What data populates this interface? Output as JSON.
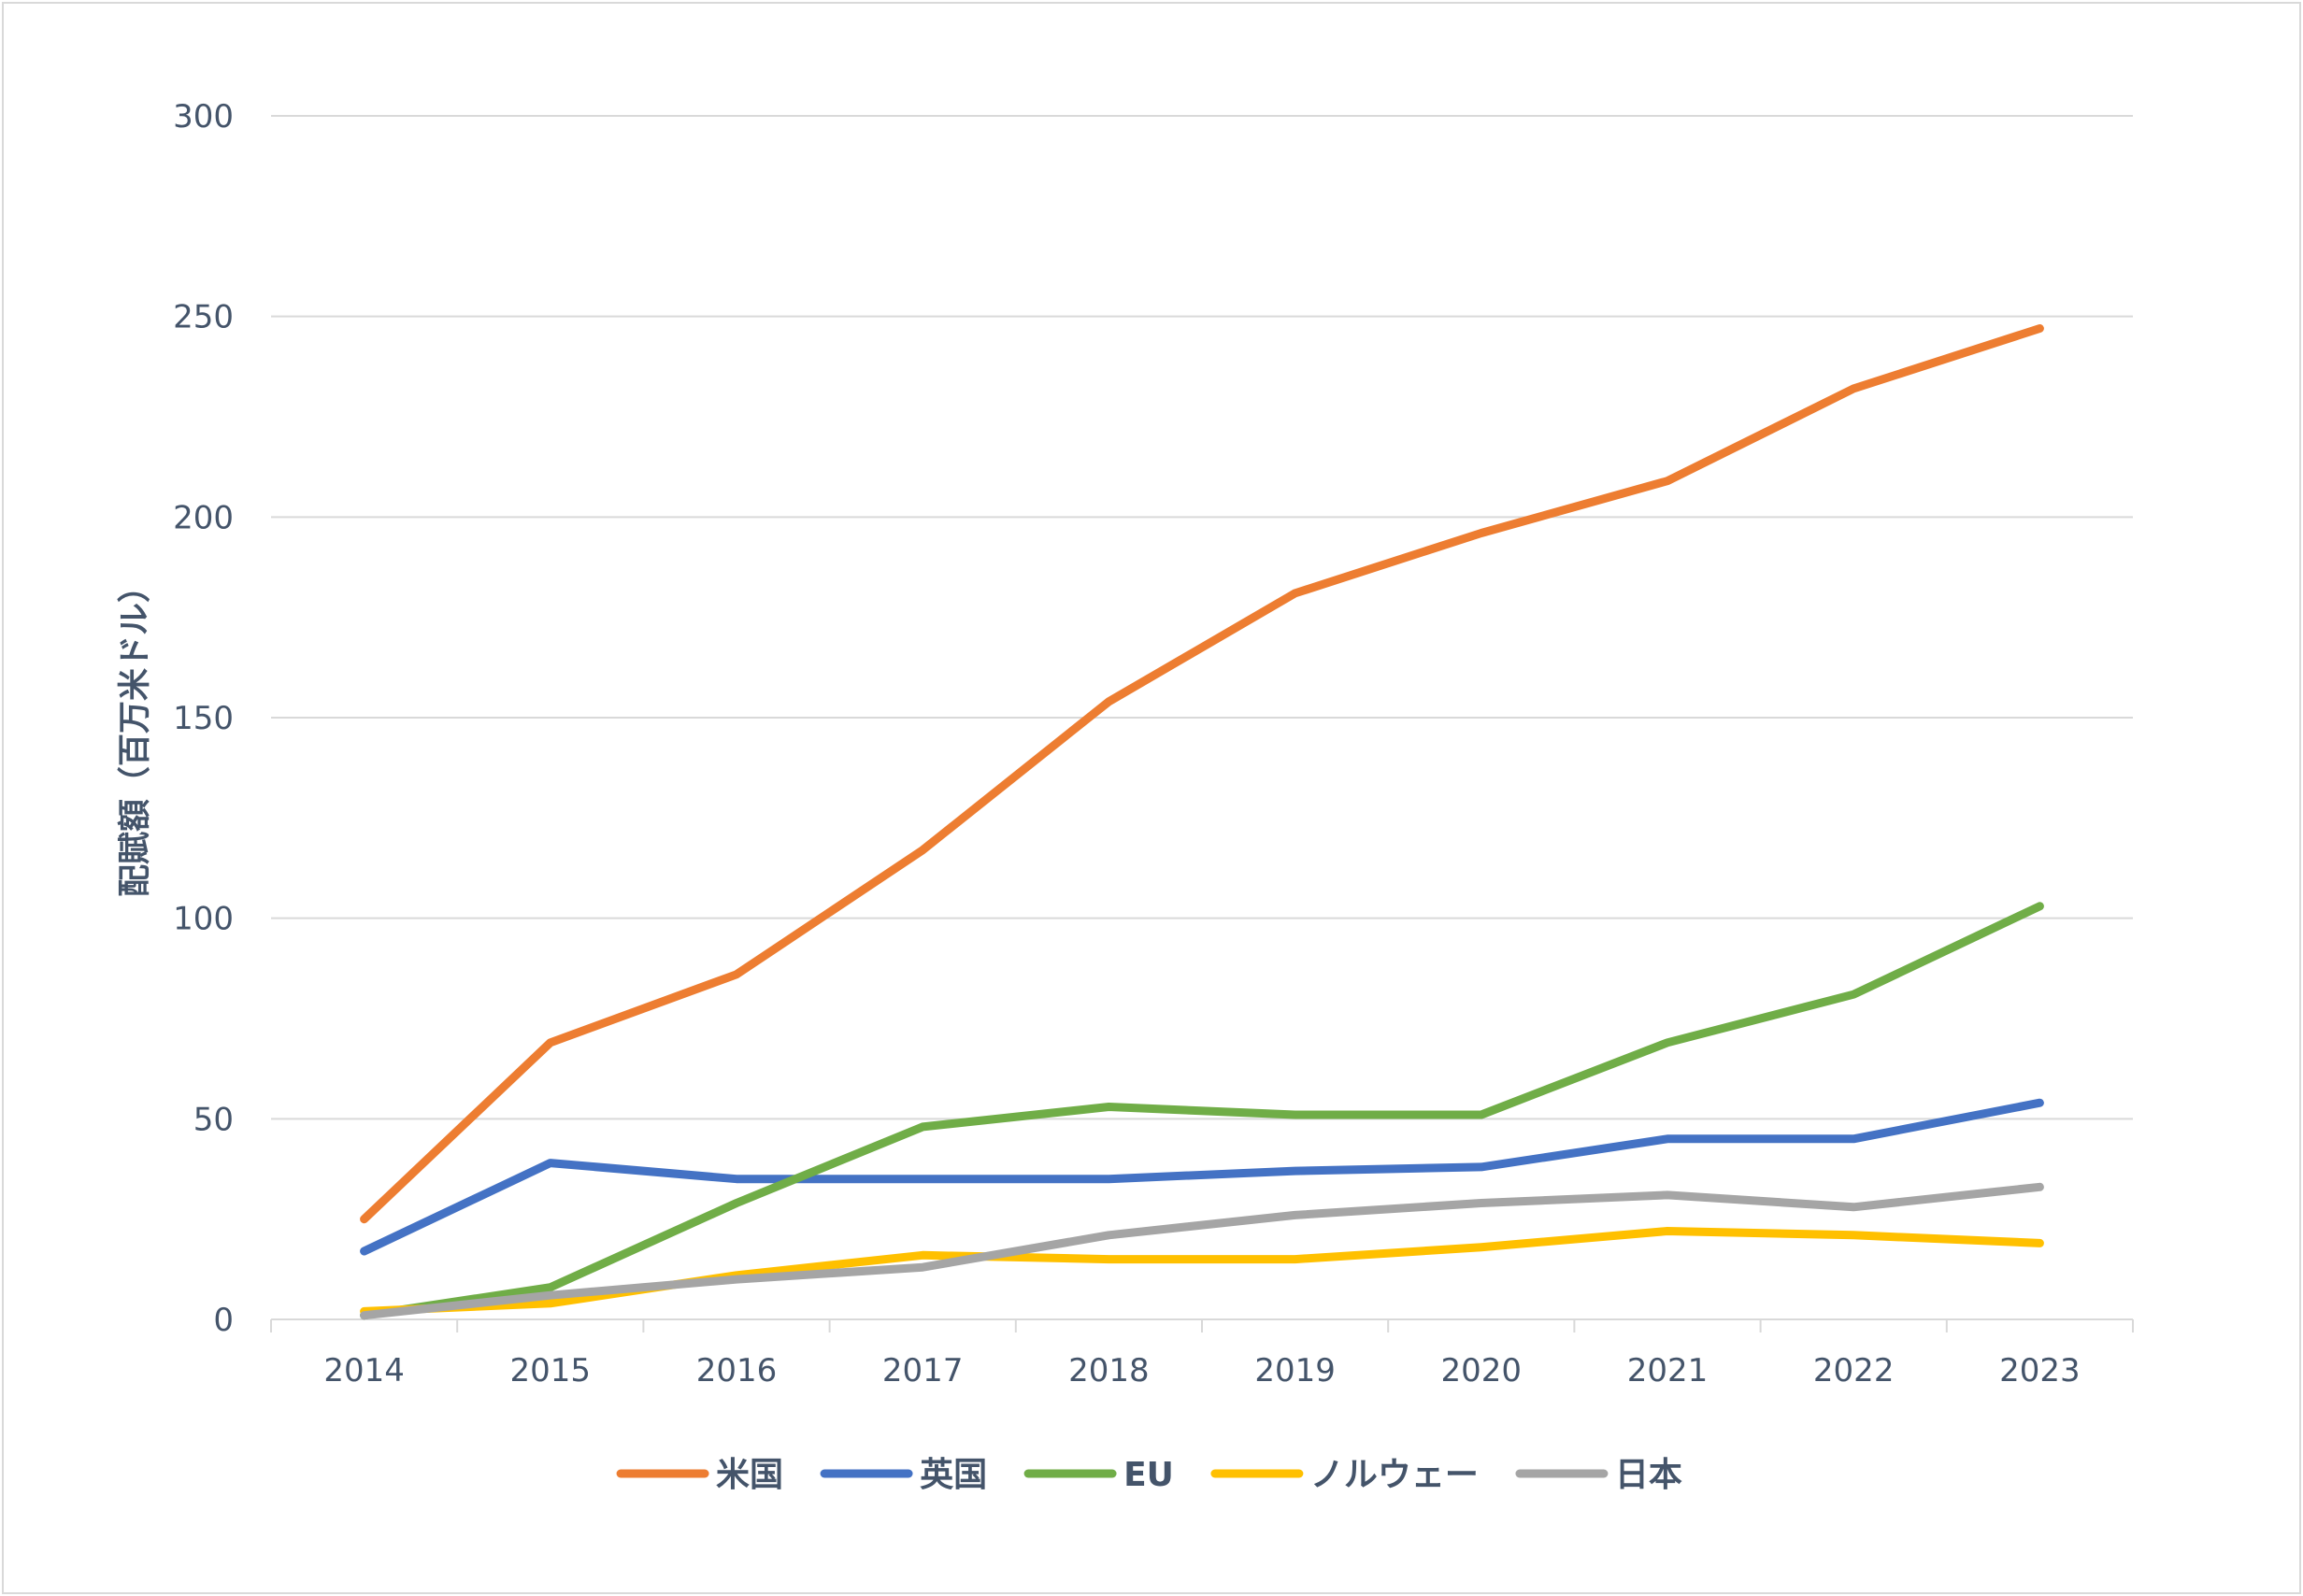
{
  "chart_data": {
    "type": "line",
    "title": "",
    "xlabel": "",
    "ylabel": "配賦額（百万米ドル）",
    "ylim": [
      0,
      300
    ],
    "yticks": [
      0,
      50,
      100,
      150,
      200,
      250,
      300
    ],
    "grid": true,
    "legend_position": "bottom",
    "categories": [
      "2014",
      "2015",
      "2016",
      "2017",
      "2018",
      "2019",
      "2020",
      "2021",
      "2022",
      "2023"
    ],
    "series": [
      {
        "name": "米国",
        "color": "#ed7d31",
        "values": [
          25,
          69,
          86,
          117,
          154,
          181,
          196,
          209,
          232,
          247
        ]
      },
      {
        "name": "英国",
        "color": "#4472c4",
        "values": [
          17,
          39,
          35,
          35,
          35,
          37,
          38,
          45,
          45,
          54
        ]
      },
      {
        "name": "EU",
        "color": "#70ad47",
        "values": [
          1,
          8,
          29,
          48,
          53,
          51,
          51,
          69,
          81,
          103
        ]
      },
      {
        "name": "ノルウェー",
        "color": "#ffc000",
        "values": [
          2,
          4,
          11,
          16,
          15,
          15,
          18,
          22,
          21,
          19
        ]
      },
      {
        "name": "日本",
        "color": "#a5a5a5",
        "values": [
          1,
          6,
          10,
          13,
          21,
          26,
          29,
          31,
          28,
          33
        ]
      }
    ]
  }
}
